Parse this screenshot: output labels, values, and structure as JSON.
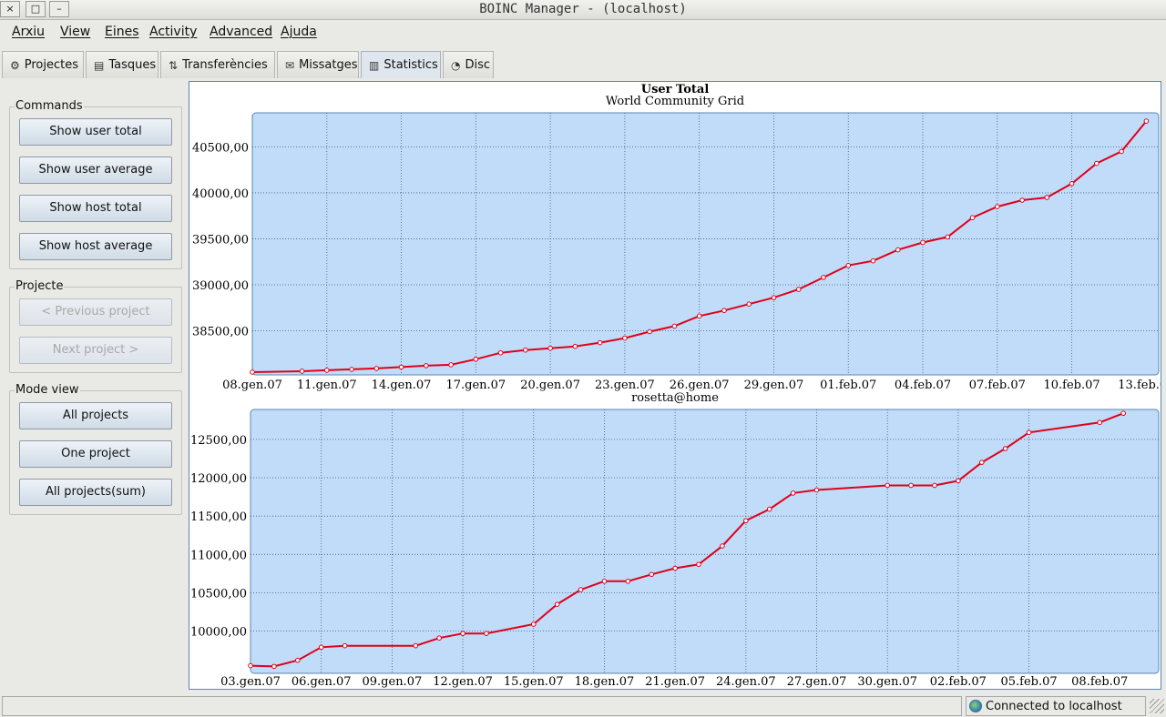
{
  "window": {
    "title": "BOINC Manager - (localhost)",
    "close_glyph": "×",
    "maximize_glyph": "□",
    "minimize_glyph": "–"
  },
  "menu": [
    "Arxiu",
    "View",
    "Eines",
    "Activity",
    "Advanced",
    "Ajuda"
  ],
  "tabs": [
    {
      "label": "Projectes",
      "icon": "gear-icon",
      "glyph": "⚙"
    },
    {
      "label": "Tasques",
      "icon": "list-icon",
      "glyph": "▤"
    },
    {
      "label": "Transferències",
      "icon": "transfer-icon",
      "glyph": "⇅"
    },
    {
      "label": "Missatges",
      "icon": "envelope-icon",
      "glyph": "✉"
    },
    {
      "label": "Statistics",
      "icon": "bar-chart-icon",
      "glyph": "▥"
    },
    {
      "label": "Disc",
      "icon": "disk-icon",
      "glyph": "◔"
    }
  ],
  "active_tab": "Statistics",
  "commands": {
    "title": "Commands",
    "buttons": [
      "Show user total",
      "Show user average",
      "Show host total",
      "Show host average"
    ]
  },
  "projecte": {
    "title": "Projecte",
    "previous": "< Previous project",
    "next": "Next project >"
  },
  "mode_view": {
    "title": "Mode view",
    "buttons": [
      "All projects",
      "One project",
      "All projects(sum)"
    ]
  },
  "status": {
    "left": "",
    "right": "Connected to localhost"
  },
  "colors": {
    "plot_bg": "#c1dcf8",
    "line": "#e0001b",
    "grid": "#3b5a8a",
    "frame": "#5a86b0"
  },
  "chart_data": [
    {
      "type": "line",
      "title": "User Total",
      "subtitle": "World Community Grid",
      "x_tick_labels": [
        "08.gen.07",
        "11.gen.07",
        "14.gen.07",
        "17.gen.07",
        "20.gen.07",
        "23.gen.07",
        "26.gen.07",
        "29.gen.07",
        "01.feb.07",
        "04.feb.07",
        "07.feb.07",
        "10.feb.07",
        "13.feb.07"
      ],
      "y_tick_labels": [
        "38500,00",
        "39000,00",
        "39500,00",
        "40000,00",
        "40500,00"
      ],
      "y_ticks": [
        38500,
        39000,
        39500,
        40000,
        40500
      ],
      "ylim": [
        38020,
        40870
      ],
      "x_start_label": "08.gen.07",
      "x_day_span": [
        0,
        36.5
      ],
      "grid": true,
      "x": [
        0,
        2,
        3,
        4,
        5,
        6,
        7,
        8,
        9,
        10,
        11,
        12,
        13,
        14,
        15,
        16,
        17,
        18,
        19,
        20,
        21,
        22,
        23,
        24,
        25,
        26,
        27,
        28,
        29,
        30,
        31,
        32,
        33,
        34,
        35,
        36
      ],
      "y": [
        38050,
        38060,
        38070,
        38080,
        38090,
        38105,
        38120,
        38130,
        38190,
        38260,
        38290,
        38310,
        38330,
        38370,
        38420,
        38490,
        38550,
        38660,
        38720,
        38790,
        38860,
        38950,
        39080,
        39210,
        39260,
        39380,
        39460,
        39520,
        39730,
        39850,
        39920,
        39950,
        40100,
        40320,
        40450,
        40780
      ]
    },
    {
      "type": "line",
      "subtitle": "rosetta@home",
      "x_tick_labels": [
        "03.gen.07",
        "06.gen.07",
        "09.gen.07",
        "12.gen.07",
        "15.gen.07",
        "18.gen.07",
        "21.gen.07",
        "24.gen.07",
        "27.gen.07",
        "30.gen.07",
        "02.feb.07",
        "05.feb.07",
        "08.feb.07"
      ],
      "y_tick_labels": [
        "10000,00",
        "10500,00",
        "11000,00",
        "11500,00",
        "12000,00",
        "12500,00"
      ],
      "y_ticks": [
        10000,
        10500,
        11000,
        11500,
        12000,
        12500
      ],
      "ylim": [
        9450,
        12890
      ],
      "x_start_label": "03.gen.07",
      "x_day_span": [
        0,
        38.5
      ],
      "grid": true,
      "x": [
        0,
        1,
        2,
        3,
        4,
        7,
        8,
        9,
        10,
        12,
        13,
        14,
        15,
        16,
        17,
        18,
        19,
        20,
        21,
        22,
        23,
        24,
        27,
        28,
        29,
        30,
        31,
        32,
        33,
        36,
        37
      ],
      "y": [
        9550,
        9540,
        9620,
        9790,
        9810,
        9810,
        9910,
        9970,
        9970,
        10090,
        10350,
        10540,
        10650,
        10650,
        10740,
        10820,
        10870,
        11110,
        11440,
        11590,
        11800,
        11840,
        11900,
        11900,
        11900,
        11960,
        12200,
        12380,
        12590,
        12720,
        12840
      ]
    }
  ]
}
